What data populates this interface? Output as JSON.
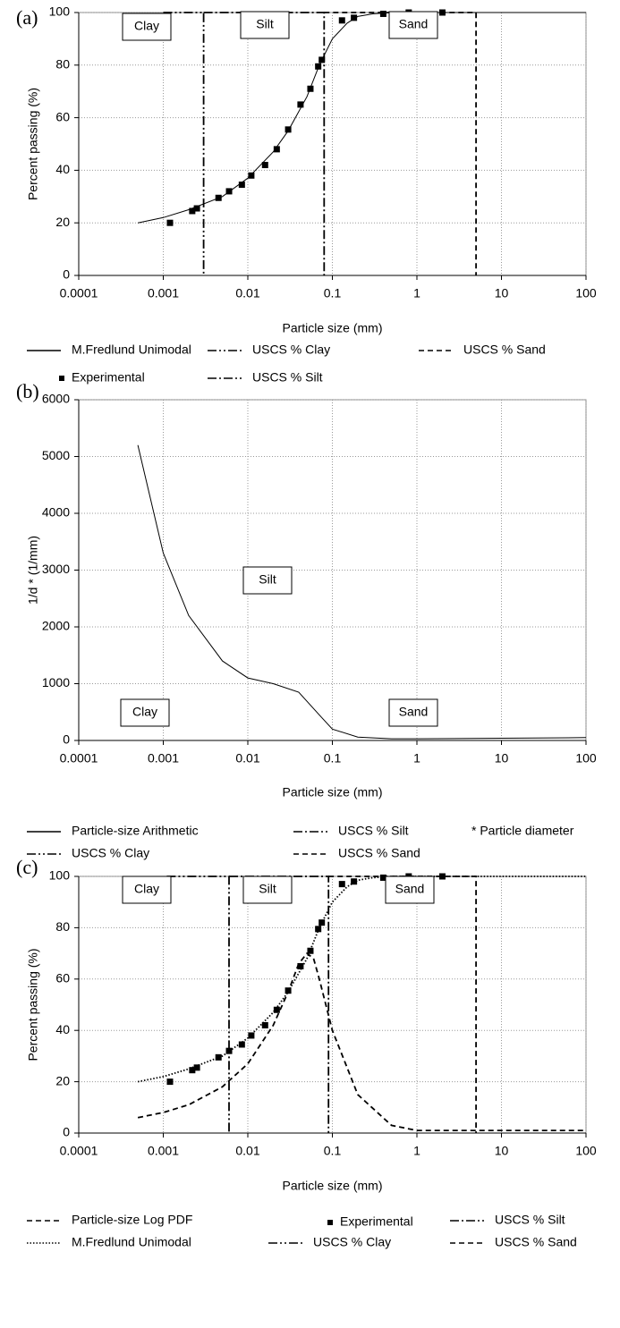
{
  "chart_data": [
    {
      "type": "line",
      "label": "(a)",
      "x_label": "Particle size (mm)",
      "y_label": "Percent passing (%)",
      "xscale": "log",
      "xlim": [
        0.0001,
        100
      ],
      "xticks": [
        0.0001,
        0.001,
        0.01,
        0.1,
        1,
        10,
        100
      ],
      "ylim": [
        0,
        100
      ],
      "yticks": [
        0,
        20,
        40,
        60,
        80,
        100
      ],
      "grid": true,
      "annotations": [
        "Clay",
        "Silt",
        "Sand"
      ],
      "series": [
        {
          "name": "M.Fredlund Unimodal",
          "color": "#000000",
          "style": "solid",
          "x": [
            0.0005,
            0.001,
            0.002,
            0.005,
            0.01,
            0.02,
            0.03,
            0.05,
            0.07,
            0.1,
            0.15,
            0.2,
            0.3,
            0.5,
            1,
            100
          ],
          "values": [
            20,
            22,
            25,
            30,
            37,
            47,
            55,
            68,
            80,
            90,
            96,
            98.5,
            99.5,
            100,
            100,
            100
          ]
        },
        {
          "name": "USCS % Clay",
          "color": "#000000",
          "style": "dashdotdot",
          "x": [
            0.001,
            0.003,
            0.003
          ],
          "values": [
            100,
            100,
            0
          ]
        },
        {
          "name": "USCS % Sand",
          "color": "#000000",
          "style": "dashed",
          "x": [
            0.08,
            5,
            5
          ],
          "values": [
            100,
            100,
            0
          ]
        },
        {
          "name": "Experimental",
          "color": "#000000",
          "style": "marker",
          "x": [
            0.0012,
            0.0022,
            0.0025,
            0.0045,
            0.006,
            0.0085,
            0.011,
            0.016,
            0.022,
            0.03,
            0.042,
            0.055,
            0.068,
            0.075,
            0.13,
            0.18,
            0.4,
            0.8,
            2
          ],
          "values": [
            20,
            24.5,
            25.5,
            29.5,
            32,
            34.5,
            38,
            42,
            48,
            55.5,
            65,
            71,
            79.5,
            82,
            97,
            98,
            99.5,
            100,
            100
          ]
        },
        {
          "name": "USCS % Silt",
          "color": "#000000",
          "style": "dashdot",
          "x": [
            0.003,
            0.08,
            0.08
          ],
          "values": [
            100,
            100,
            0
          ]
        }
      ]
    },
    {
      "type": "line",
      "label": "(b)",
      "x_label": "Particle size (mm)",
      "y_label": "1/d * (1/mm)",
      "xscale": "log",
      "xlim": [
        0.0001,
        100
      ],
      "xticks": [
        0.0001,
        0.001,
        0.01,
        0.1,
        1,
        10,
        100
      ],
      "ylim": [
        0,
        6000
      ],
      "yticks": [
        0,
        1000,
        2000,
        3000,
        4000,
        5000,
        6000
      ],
      "grid": true,
      "annotations": [
        "Silt",
        "Clay",
        "Sand"
      ],
      "note": "* Particle diameter",
      "series": [
        {
          "name": "Particle-size Arithmetic",
          "color": "#000000",
          "style": "solid",
          "x": [
            0.0005,
            0.001,
            0.002,
            0.005,
            0.01,
            0.02,
            0.04,
            0.07,
            0.1,
            0.2,
            0.5,
            1,
            10,
            100
          ],
          "values": [
            5200,
            3300,
            2200,
            1400,
            1100,
            1000,
            850,
            450,
            200,
            60,
            30,
            30,
            40,
            50
          ]
        },
        {
          "name": "USCS % Silt",
          "color": "#000000",
          "style": "dashdot",
          "x": [],
          "values": []
        },
        {
          "name": "USCS % Clay",
          "color": "#000000",
          "style": "dashdotdot",
          "x": [],
          "values": []
        },
        {
          "name": "USCS % Sand",
          "color": "#000000",
          "style": "dashed",
          "x": [],
          "values": []
        }
      ]
    },
    {
      "type": "line",
      "label": "(c)",
      "x_label": "Particle size (mm)",
      "y_label": "Percent passing (%)",
      "xscale": "log",
      "xlim": [
        0.0001,
        100
      ],
      "xticks": [
        0.0001,
        0.001,
        0.01,
        0.1,
        1,
        10,
        100
      ],
      "ylim": [
        0,
        100
      ],
      "yticks": [
        0,
        20,
        40,
        60,
        80,
        100
      ],
      "grid": true,
      "annotations": [
        "Clay",
        "Silt",
        "Sand"
      ],
      "series": [
        {
          "name": "Particle-size Log PDF",
          "color": "#000000",
          "style": "dashed",
          "x": [
            0.0005,
            0.001,
            0.002,
            0.005,
            0.01,
            0.02,
            0.03,
            0.04,
            0.05,
            0.06,
            0.07,
            0.1,
            0.2,
            0.5,
            1,
            100
          ],
          "values": [
            6,
            8,
            11,
            18,
            27,
            42,
            55,
            66,
            70,
            68,
            60,
            40,
            15,
            3,
            1,
            1
          ]
        },
        {
          "name": "M.Fredlund Unimodal",
          "color": "#000000",
          "style": "dotted",
          "x": [
            0.0005,
            0.001,
            0.002,
            0.005,
            0.01,
            0.02,
            0.03,
            0.05,
            0.07,
            0.1,
            0.15,
            0.2,
            0.3,
            0.5,
            1,
            100
          ],
          "values": [
            20,
            22,
            25,
            30,
            37,
            47,
            55,
            68,
            80,
            90,
            96,
            98.5,
            99.5,
            100,
            100,
            100
          ]
        },
        {
          "name": "Experimental",
          "color": "#000000",
          "style": "marker",
          "x": [
            0.0012,
            0.0022,
            0.0025,
            0.0045,
            0.006,
            0.0085,
            0.011,
            0.016,
            0.022,
            0.03,
            0.042,
            0.055,
            0.068,
            0.075,
            0.13,
            0.18,
            0.4,
            0.8,
            2
          ],
          "values": [
            20,
            24.5,
            25.5,
            29.5,
            32,
            34.5,
            38,
            42,
            48,
            55.5,
            65,
            71,
            79.5,
            82,
            97,
            98,
            99.5,
            100,
            100
          ]
        },
        {
          "name": "USCS % Clay",
          "color": "#000000",
          "style": "dashdotdot",
          "x": [
            0.0011,
            0.006,
            0.006
          ],
          "values": [
            100,
            100,
            0
          ]
        },
        {
          "name": "USCS % Silt",
          "color": "#000000",
          "style": "dashdot",
          "x": [
            0.006,
            0.09,
            0.09
          ],
          "values": [
            100,
            100,
            0
          ]
        },
        {
          "name": "USCS % Sand",
          "color": "#000000",
          "style": "dashed",
          "x": [
            0.09,
            5,
            5
          ],
          "values": [
            100,
            100,
            0
          ]
        }
      ]
    }
  ]
}
